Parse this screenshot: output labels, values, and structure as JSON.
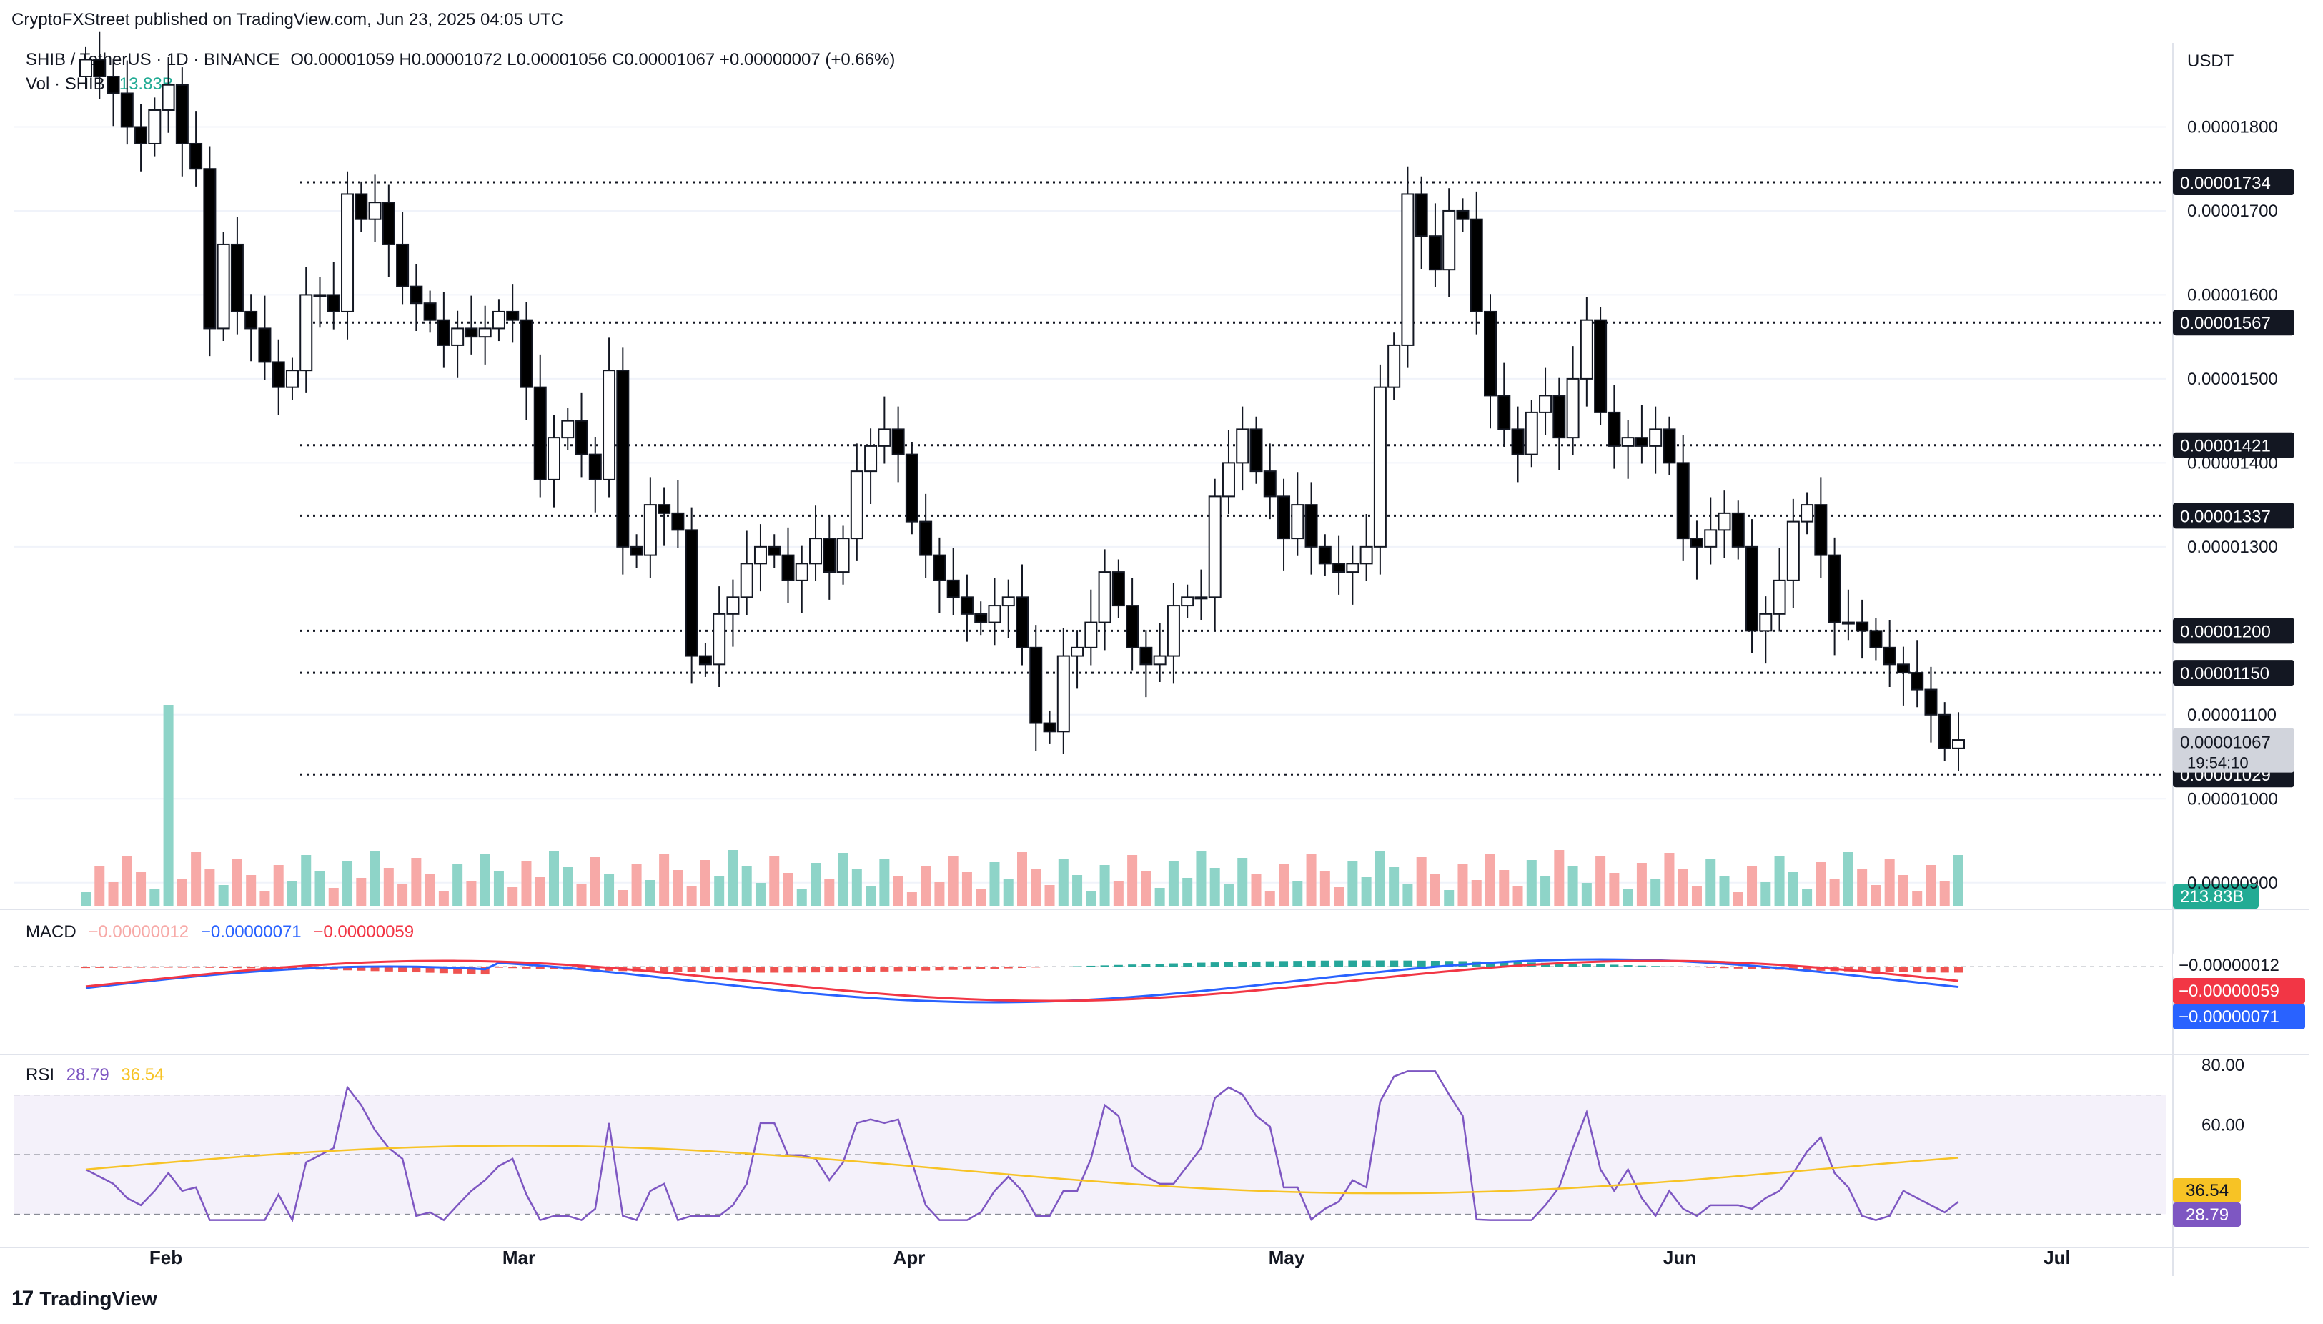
{
  "header": {
    "publisher": "CryptoFXStreet published on TradingView.com, Jun 23, 2025 04:05 UTC"
  },
  "symbol": {
    "name": "SHIB / TetherUS · 1D · BINANCE",
    "ohlc": "O0.00001059  H0.00001072  L0.00001056  C0.00001067  +0.00000007 (+0.66%)",
    "vol_label": "Vol · SHIB",
    "vol_value": "213.83B",
    "currency": "USDT"
  },
  "price_axis": {
    "labels": [
      "0.00001800",
      "0.00001700",
      "0.00001600",
      "0.00001500",
      "0.00001400",
      "0.00001300",
      "0.00001100",
      "0.00001000",
      "0.00000900"
    ]
  },
  "levels": [
    {
      "label": "0.00001734",
      "value": 1.734e-05
    },
    {
      "label": "0.00001567",
      "value": 1.567e-05
    },
    {
      "label": "0.00001421",
      "value": 1.421e-05
    },
    {
      "label": "0.00001337",
      "value": 1.337e-05
    },
    {
      "label": "0.00001200",
      "value": 1.2e-05
    },
    {
      "label": "0.00001150",
      "value": 1.15e-05
    },
    {
      "label": "0.00001029",
      "value": 1.029e-05
    }
  ],
  "current_price": {
    "label": "0.00001067",
    "countdown": "19:54:10",
    "value": 1.067e-05
  },
  "volume_tag": "213.83B",
  "macd": {
    "label": "MACD",
    "hist": "−0.00000012",
    "macd": "−0.00000071",
    "signal": "−0.00000059",
    "tags": [
      "−0.00000012",
      "−0.00000059",
      "−0.00000071"
    ]
  },
  "rsi": {
    "label": "RSI",
    "value": "28.79",
    "ma": "36.54",
    "axis": [
      "80.00",
      "60.00"
    ],
    "tags": [
      "36.54",
      "28.79"
    ]
  },
  "time_axis": [
    "Feb",
    "Mar",
    "Apr",
    "May",
    "Jun",
    "Jul"
  ],
  "footer": {
    "brand": "TradingView"
  },
  "colors": {
    "up": "#ffffff",
    "down": "#000000",
    "vol_up": "#8ed4c8",
    "vol_down": "#f7a9a7",
    "macd_line": "#2962ff",
    "signal_line": "#f23645",
    "rsi_line": "#7e57c2",
    "rsi_ma": "#f7c325"
  },
  "chart_data": {
    "type": "candlestick",
    "title": "SHIB / TetherUS · 1D · BINANCE",
    "ylabel": "USDT",
    "ylim": [
      8.7e-06,
      1.9e-05
    ],
    "closes": [
      1.88,
      1.86,
      1.84,
      1.8,
      1.78,
      1.82,
      1.85,
      1.78,
      1.75,
      1.56,
      1.66,
      1.58,
      1.56,
      1.52,
      1.49,
      1.51,
      1.6,
      1.6,
      1.58,
      1.72,
      1.69,
      1.71,
      1.66,
      1.61,
      1.59,
      1.57,
      1.54,
      1.56,
      1.55,
      1.56,
      1.58,
      1.57,
      1.49,
      1.38,
      1.43,
      1.45,
      1.41,
      1.38,
      1.51,
      1.3,
      1.29,
      1.35,
      1.34,
      1.32,
      1.17,
      1.16,
      1.22,
      1.24,
      1.28,
      1.3,
      1.29,
      1.26,
      1.28,
      1.31,
      1.27,
      1.31,
      1.39,
      1.42,
      1.44,
      1.41,
      1.33,
      1.29,
      1.26,
      1.24,
      1.22,
      1.21,
      1.23,
      1.24,
      1.18,
      1.09,
      1.08,
      1.17,
      1.18,
      1.21,
      1.27,
      1.23,
      1.18,
      1.16,
      1.17,
      1.23,
      1.24,
      1.24,
      1.36,
      1.4,
      1.44,
      1.39,
      1.36,
      1.31,
      1.35,
      1.3,
      1.28,
      1.27,
      1.28,
      1.3,
      1.49,
      1.54,
      1.72,
      1.67,
      1.63,
      1.7,
      1.69,
      1.58,
      1.48,
      1.44,
      1.41,
      1.46,
      1.48,
      1.43,
      1.5,
      1.57,
      1.46,
      1.42,
      1.43,
      1.42,
      1.44,
      1.4,
      1.31,
      1.3,
      1.32,
      1.34,
      1.3,
      1.2,
      1.22,
      1.26,
      1.33,
      1.35,
      1.29,
      1.21,
      1.21,
      1.2,
      1.18,
      1.16,
      1.15,
      1.13,
      1.1,
      1.06,
      1.07
    ],
    "levels": [
      1.734e-05,
      1.567e-05,
      1.421e-05,
      1.337e-05,
      1.2e-05,
      1.15e-05,
      1.029e-05
    ],
    "x_labels": [
      "Feb",
      "Mar",
      "Apr",
      "May",
      "Jun",
      "Jul"
    ]
  }
}
